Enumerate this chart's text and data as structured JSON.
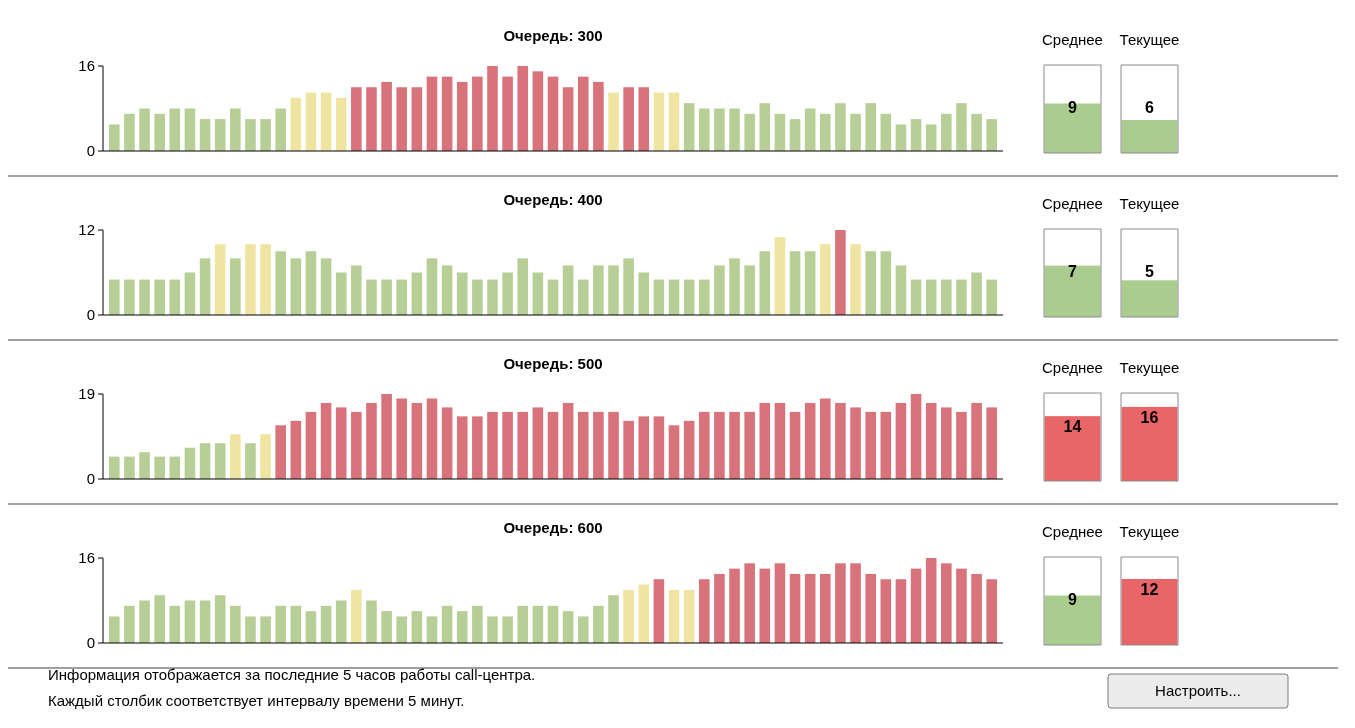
{
  "chart_data": [
    {
      "type": "bar",
      "title": "Очередь: 300",
      "categories": [
        null,
        null,
        null,
        null,
        null,
        null,
        null,
        null,
        null,
        null,
        null,
        null,
        null,
        null,
        null,
        null,
        null,
        null,
        null,
        null,
        null,
        null,
        null,
        null,
        null,
        null,
        null,
        null,
        null,
        null,
        null,
        null,
        null,
        null,
        null,
        null,
        null,
        null,
        null,
        null,
        null,
        null,
        null,
        null,
        null,
        null,
        null,
        null,
        null,
        null,
        null,
        null,
        null,
        null,
        null,
        null,
        null,
        null,
        null
      ],
      "values": [
        5,
        7,
        8,
        7,
        8,
        8,
        6,
        6,
        8,
        6,
        6,
        8,
        10,
        11,
        11,
        10,
        12,
        12,
        13,
        12,
        12,
        14,
        14,
        13,
        14,
        16,
        14,
        16,
        15,
        14,
        12,
        14,
        13,
        11,
        12,
        12,
        11,
        11,
        9,
        8,
        8,
        8,
        7,
        9,
        7,
        6,
        8,
        7,
        9,
        7,
        9,
        7,
        5,
        6,
        5,
        7,
        9,
        7,
        6
      ],
      "colors": [
        "#b7cf97",
        "#b7cf97",
        "#b7cf97",
        "#b7cf97",
        "#b7cf97",
        "#b7cf97",
        "#b7cf97",
        "#b7cf97",
        "#b7cf97",
        "#b7cf97",
        "#b7cf97",
        "#b7cf97",
        "#f0e4a2",
        "#f0e4a2",
        "#f0e4a2",
        "#f0e4a2",
        "#d8737b",
        "#d8737b",
        "#d8737b",
        "#d8737b",
        "#d8737b",
        "#d8737b",
        "#d8737b",
        "#d8737b",
        "#d8737b",
        "#d8737b",
        "#d8737b",
        "#d8737b",
        "#d8737b",
        "#d8737b",
        "#d8737b",
        "#d8737b",
        "#d8737b",
        "#f0e4a2",
        "#d8737b",
        "#d8737b",
        "#f0e4a2",
        "#f0e4a2",
        "#b7cf97",
        "#b7cf97",
        "#b7cf97",
        "#b7cf97",
        "#b7cf97",
        "#b7cf97",
        "#b7cf97",
        "#b7cf97",
        "#b7cf97",
        "#b7cf97",
        "#b7cf97",
        "#b7cf97",
        "#b7cf97",
        "#b7cf97",
        "#b7cf97",
        "#b7cf97",
        "#b7cf97",
        "#b7cf97",
        "#b7cf97",
        "#b7cf97",
        "#b7cf97"
      ],
      "ylim": [
        0,
        16
      ],
      "yticks": [
        0,
        16
      ]
    },
    {
      "type": "bar",
      "categories": [
        "Среднее",
        "Текущее"
      ],
      "values": [
        9,
        6
      ],
      "colors": [
        "#aacd8f",
        "#aacd8f"
      ],
      "data_labels": true,
      "tick_labels": "x"
    },
    {
      "type": "bar",
      "title": "Очередь: 400",
      "categories": [
        null,
        null,
        null,
        null,
        null,
        null,
        null,
        null,
        null,
        null,
        null,
        null,
        null,
        null,
        null,
        null,
        null,
        null,
        null,
        null,
        null,
        null,
        null,
        null,
        null,
        null,
        null,
        null,
        null,
        null,
        null,
        null,
        null,
        null,
        null,
        null,
        null,
        null,
        null,
        null,
        null,
        null,
        null,
        null,
        null,
        null,
        null,
        null,
        null,
        null,
        null,
        null,
        null,
        null,
        null,
        null,
        null,
        null,
        null
      ],
      "values": [
        5,
        5,
        5,
        5,
        5,
        6,
        8,
        10,
        8,
        10,
        10,
        9,
        8,
        9,
        8,
        6,
        7,
        5,
        5,
        5,
        6,
        8,
        7,
        6,
        5,
        5,
        6,
        8,
        6,
        5,
        7,
        5,
        7,
        7,
        8,
        6,
        5,
        5,
        5,
        5,
        7,
        8,
        7,
        9,
        11,
        9,
        9,
        10,
        12,
        10,
        9,
        9,
        7,
        5,
        5,
        5,
        5,
        6,
        5
      ],
      "colors": [
        "#b7cf97",
        "#b7cf97",
        "#b7cf97",
        "#b7cf97",
        "#b7cf97",
        "#b7cf97",
        "#b7cf97",
        "#f0e4a2",
        "#b7cf97",
        "#f0e4a2",
        "#f0e4a2",
        "#b7cf97",
        "#b7cf97",
        "#b7cf97",
        "#b7cf97",
        "#b7cf97",
        "#b7cf97",
        "#b7cf97",
        "#b7cf97",
        "#b7cf97",
        "#b7cf97",
        "#b7cf97",
        "#b7cf97",
        "#b7cf97",
        "#b7cf97",
        "#b7cf97",
        "#b7cf97",
        "#b7cf97",
        "#b7cf97",
        "#b7cf97",
        "#b7cf97",
        "#b7cf97",
        "#b7cf97",
        "#b7cf97",
        "#b7cf97",
        "#b7cf97",
        "#b7cf97",
        "#b7cf97",
        "#b7cf97",
        "#b7cf97",
        "#b7cf97",
        "#b7cf97",
        "#b7cf97",
        "#b7cf97",
        "#f0e4a2",
        "#b7cf97",
        "#b7cf97",
        "#f0e4a2",
        "#d8737b",
        "#f0e4a2",
        "#b7cf97",
        "#b7cf97",
        "#b7cf97",
        "#b7cf97",
        "#b7cf97",
        "#b7cf97",
        "#b7cf97",
        "#b7cf97",
        "#b7cf97"
      ],
      "ylim": [
        0,
        12
      ],
      "yticks": [
        0,
        12
      ]
    },
    {
      "type": "bar",
      "categories": [
        "Среднее",
        "Текущее"
      ],
      "values": [
        7,
        5
      ],
      "colors": [
        "#aacd8f",
        "#aacd8f"
      ],
      "data_labels": true,
      "tick_labels": "x"
    },
    {
      "type": "bar",
      "title": "Очередь: 500",
      "categories": [
        null,
        null,
        null,
        null,
        null,
        null,
        null,
        null,
        null,
        null,
        null,
        null,
        null,
        null,
        null,
        null,
        null,
        null,
        null,
        null,
        null,
        null,
        null,
        null,
        null,
        null,
        null,
        null,
        null,
        null,
        null,
        null,
        null,
        null,
        null,
        null,
        null,
        null,
        null,
        null,
        null,
        null,
        null,
        null,
        null,
        null,
        null,
        null,
        null,
        null,
        null,
        null,
        null,
        null,
        null,
        null,
        null,
        null,
        null
      ],
      "values": [
        5,
        5,
        6,
        5,
        5,
        7,
        8,
        8,
        10,
        8,
        10,
        12,
        13,
        15,
        17,
        16,
        15,
        17,
        19,
        18,
        17,
        18,
        16,
        14,
        14,
        15,
        15,
        15,
        16,
        15,
        17,
        15,
        15,
        15,
        13,
        14,
        14,
        12,
        13,
        15,
        15,
        15,
        15,
        17,
        17,
        15,
        17,
        18,
        17,
        16,
        15,
        15,
        17,
        19,
        17,
        16,
        15,
        17,
        16
      ],
      "colors": [
        "#b7cf97",
        "#b7cf97",
        "#b7cf97",
        "#b7cf97",
        "#b7cf97",
        "#b7cf97",
        "#b7cf97",
        "#b7cf97",
        "#f0e4a2",
        "#b7cf97",
        "#f0e4a2",
        "#d8737b",
        "#d8737b",
        "#d8737b",
        "#d8737b",
        "#d8737b",
        "#d8737b",
        "#d8737b",
        "#d8737b",
        "#d8737b",
        "#d8737b",
        "#d8737b",
        "#d8737b",
        "#d8737b",
        "#d8737b",
        "#d8737b",
        "#d8737b",
        "#d8737b",
        "#d8737b",
        "#d8737b",
        "#d8737b",
        "#d8737b",
        "#d8737b",
        "#d8737b",
        "#d8737b",
        "#d8737b",
        "#d8737b",
        "#d8737b",
        "#d8737b",
        "#d8737b",
        "#d8737b",
        "#d8737b",
        "#d8737b",
        "#d8737b",
        "#d8737b",
        "#d8737b",
        "#d8737b",
        "#d8737b",
        "#d8737b",
        "#d8737b",
        "#d8737b",
        "#d8737b",
        "#d8737b",
        "#d8737b",
        "#d8737b",
        "#d8737b",
        "#d8737b",
        "#d8737b",
        "#d8737b"
      ],
      "ylim": [
        0,
        19
      ],
      "yticks": [
        0,
        19
      ]
    },
    {
      "type": "bar",
      "categories": [
        "Среднее",
        "Текущее"
      ],
      "values": [
        14,
        16
      ],
      "colors": [
        "#e86668",
        "#e86668"
      ],
      "data_labels": true,
      "tick_labels": "x"
    },
    {
      "type": "bar",
      "title": "Очередь: 600",
      "categories": [
        null,
        null,
        null,
        null,
        null,
        null,
        null,
        null,
        null,
        null,
        null,
        null,
        null,
        null,
        null,
        null,
        null,
        null,
        null,
        null,
        null,
        null,
        null,
        null,
        null,
        null,
        null,
        null,
        null,
        null,
        null,
        null,
        null,
        null,
        null,
        null,
        null,
        null,
        null,
        null,
        null,
        null,
        null,
        null,
        null,
        null,
        null,
        null,
        null,
        null,
        null,
        null,
        null,
        null,
        null,
        null,
        null,
        null,
        null
      ],
      "values": [
        5,
        7,
        8,
        9,
        7,
        8,
        8,
        9,
        7,
        5,
        5,
        7,
        7,
        6,
        7,
        8,
        10,
        8,
        6,
        5,
        6,
        5,
        7,
        6,
        7,
        5,
        5,
        7,
        7,
        7,
        6,
        5,
        7,
        9,
        10,
        11,
        12,
        10,
        10,
        12,
        13,
        14,
        15,
        14,
        15,
        13,
        13,
        13,
        15,
        15,
        13,
        12,
        12,
        14,
        16,
        15,
        14,
        13,
        12
      ],
      "colors": [
        "#b7cf97",
        "#b7cf97",
        "#b7cf97",
        "#b7cf97",
        "#b7cf97",
        "#b7cf97",
        "#b7cf97",
        "#b7cf97",
        "#b7cf97",
        "#b7cf97",
        "#b7cf97",
        "#b7cf97",
        "#b7cf97",
        "#b7cf97",
        "#b7cf97",
        "#b7cf97",
        "#f0e4a2",
        "#b7cf97",
        "#b7cf97",
        "#b7cf97",
        "#b7cf97",
        "#b7cf97",
        "#b7cf97",
        "#b7cf97",
        "#b7cf97",
        "#b7cf97",
        "#b7cf97",
        "#b7cf97",
        "#b7cf97",
        "#b7cf97",
        "#b7cf97",
        "#b7cf97",
        "#b7cf97",
        "#b7cf97",
        "#f0e4a2",
        "#f0e4a2",
        "#d8737b",
        "#f0e4a2",
        "#f0e4a2",
        "#d8737b",
        "#d8737b",
        "#d8737b",
        "#d8737b",
        "#d8737b",
        "#d8737b",
        "#d8737b",
        "#d8737b",
        "#d8737b",
        "#d8737b",
        "#d8737b",
        "#d8737b",
        "#d8737b",
        "#d8737b",
        "#d8737b",
        "#d8737b",
        "#d8737b",
        "#d8737b",
        "#d8737b",
        "#d8737b"
      ],
      "ylim": [
        0,
        16
      ],
      "yticks": [
        0,
        16
      ],
      "annotations": [
        "Информация отображается за последние 5 часов работы call-центра.",
        "Каждый столбик соответствует интервалу времени 5 минут."
      ]
    },
    {
      "type": "bar",
      "categories": [
        "Среднее",
        "Текущее"
      ],
      "values": [
        9,
        12
      ],
      "colors": [
        "#aacd8f",
        "#e86668"
      ],
      "data_labels": true,
      "tick_labels": "x",
      "annotations": [
        "Настроить..."
      ]
    }
  ]
}
